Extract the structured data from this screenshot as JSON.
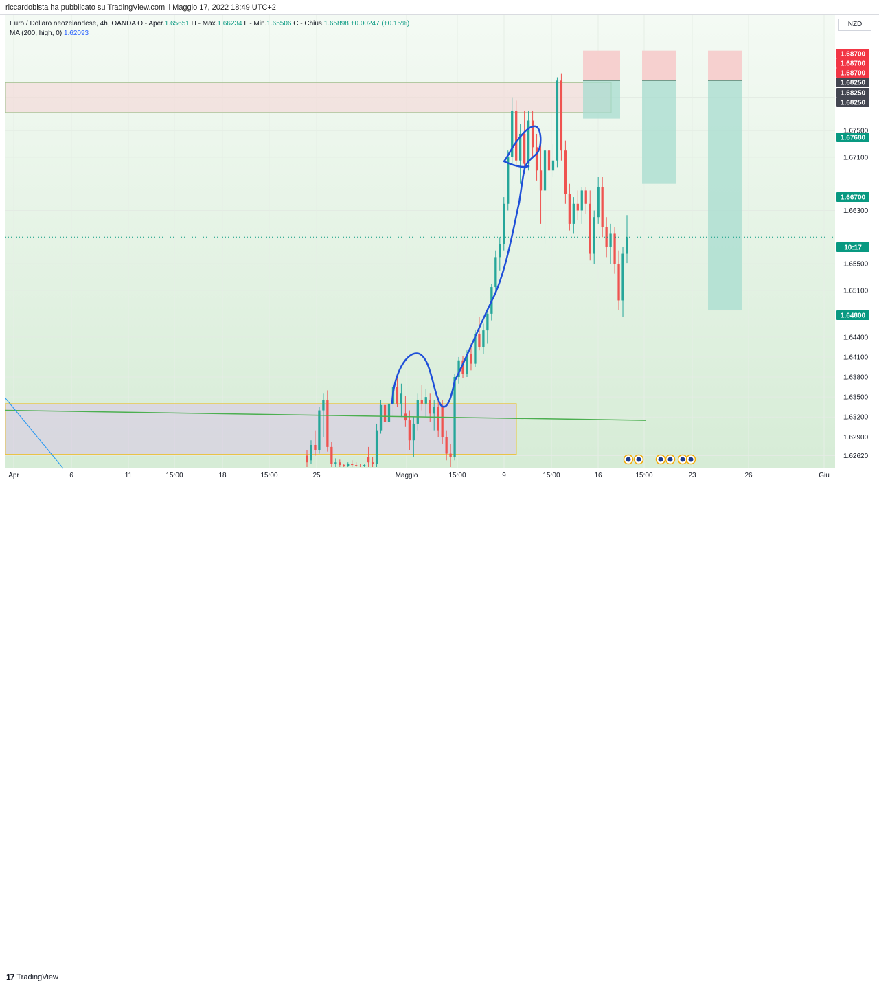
{
  "header": {
    "published": "riccardobista ha pubblicato su TradingView.com il Maggio 17, 2022 18:49 UTC+2"
  },
  "legend": {
    "symbol": "Euro / Dollaro neozelandese, 4h, OANDA",
    "ohlc": [
      {
        "label": "O - Aper.",
        "value": "1.65651"
      },
      {
        "label": "H - Max.",
        "value": "1.66234"
      },
      {
        "label": "L - Min.",
        "value": "1.65506"
      },
      {
        "label": "C - Chius.",
        "value": "1.65898"
      }
    ],
    "change": "+0.00247 (+0.15%)",
    "ma_label": "MA (200, high, 0)",
    "ma_value": "1.62093"
  },
  "currency": "NZD",
  "footer": {
    "brand": "TradingView",
    "mark": "17"
  },
  "colors": {
    "up": "#26a69a",
    "down": "#ef5350",
    "ma": "#4caf50",
    "drawing": "#1e4fd8",
    "accent": "#089981"
  },
  "chart_data": {
    "type": "candlestick",
    "symbol": "EURNZD",
    "timeframe": "4h",
    "ylim": [
      1.6245,
      1.6915
    ],
    "y_ticks": [
      "1.62620",
      "1.62900",
      "1.63200",
      "1.63500",
      "1.63800",
      "1.64100",
      "1.64400",
      "1.64700",
      "1.65100",
      "1.65500",
      "1.66300",
      "1.67100",
      "1.67500",
      "1.68000"
    ],
    "x_ticks": [
      "Apr",
      "6",
      "11",
      "15:00",
      "18",
      "15:00",
      "25",
      "Maggio",
      "15:00",
      "9",
      "15:00",
      "16",
      "15:00",
      "23",
      "26",
      "Giu"
    ],
    "price_labels": [
      {
        "text": "1.68700",
        "value": 1.687,
        "color": "#f23645"
      },
      {
        "text": "1.68700",
        "value": 1.687,
        "color": "#f23645"
      },
      {
        "text": "1.68700",
        "value": 1.687,
        "color": "#f23645"
      },
      {
        "text": "1.68250",
        "value": 1.6825,
        "color": "#434651"
      },
      {
        "text": "1.68250",
        "value": 1.6825,
        "color": "#434651"
      },
      {
        "text": "1.68250",
        "value": 1.6825,
        "color": "#434651"
      },
      {
        "text": "1.67680",
        "value": 1.6768,
        "color": "#089981"
      },
      {
        "text": "1.66700",
        "value": 1.667,
        "color": "#089981"
      },
      {
        "text": "10:17",
        "value": 1.659,
        "color": "#089981"
      },
      {
        "text": "1.64800",
        "value": 1.648,
        "color": "#089981"
      }
    ],
    "current_price": 1.659,
    "moving_average": {
      "name": "MA (200, high, 0)",
      "start": 1.633,
      "end": 1.6315
    },
    "supply_zone": {
      "top": 1.6822,
      "bottom": 1.6777
    },
    "demand_zone": {
      "top": 1.634,
      "bottom": 1.6264
    },
    "positions": [
      {
        "stop": 1.687,
        "entry": 1.6825,
        "target": 1.6768
      },
      {
        "stop": 1.687,
        "entry": 1.6825,
        "target": 1.667
      },
      {
        "stop": 1.687,
        "entry": 1.6825,
        "target": 1.648
      }
    ],
    "candles": [
      {
        "o": 1.6262,
        "h": 1.627,
        "l": 1.6245,
        "c": 1.6252
      },
      {
        "o": 1.6255,
        "h": 1.6285,
        "l": 1.625,
        "c": 1.6278
      },
      {
        "o": 1.6278,
        "h": 1.63,
        "l": 1.6262,
        "c": 1.627
      },
      {
        "o": 1.627,
        "h": 1.6335,
        "l": 1.6265,
        "c": 1.633
      },
      {
        "o": 1.633,
        "h": 1.6355,
        "l": 1.629,
        "c": 1.6345
      },
      {
        "o": 1.6345,
        "h": 1.636,
        "l": 1.6268,
        "c": 1.6275
      },
      {
        "o": 1.6275,
        "h": 1.6283,
        "l": 1.6245,
        "c": 1.625
      },
      {
        "o": 1.625,
        "h": 1.6258,
        "l": 1.6245,
        "c": 1.6252
      },
      {
        "o": 1.6252,
        "h": 1.6256,
        "l": 1.6245,
        "c": 1.6248
      },
      {
        "o": 1.6248,
        "h": 1.625,
        "l": 1.6245,
        "c": 1.6247
      },
      {
        "o": 1.6247,
        "h": 1.6252,
        "l": 1.6245,
        "c": 1.625
      },
      {
        "o": 1.625,
        "h": 1.6255,
        "l": 1.6245,
        "c": 1.6248
      },
      {
        "o": 1.6248,
        "h": 1.6252,
        "l": 1.6245,
        "c": 1.6247
      },
      {
        "o": 1.6247,
        "h": 1.625,
        "l": 1.6245,
        "c": 1.6246
      },
      {
        "o": 1.6246,
        "h": 1.6249,
        "l": 1.6245,
        "c": 1.6248
      },
      {
        "o": 1.626,
        "h": 1.6275,
        "l": 1.6245,
        "c": 1.6252
      },
      {
        "o": 1.6252,
        "h": 1.626,
        "l": 1.6245,
        "c": 1.625
      },
      {
        "o": 1.625,
        "h": 1.631,
        "l": 1.6245,
        "c": 1.63
      },
      {
        "o": 1.63,
        "h": 1.6345,
        "l": 1.6295,
        "c": 1.6338
      },
      {
        "o": 1.6338,
        "h": 1.635,
        "l": 1.63,
        "c": 1.6312
      },
      {
        "o": 1.6312,
        "h": 1.6345,
        "l": 1.6305,
        "c": 1.634
      },
      {
        "o": 1.634,
        "h": 1.6375,
        "l": 1.632,
        "c": 1.6365
      },
      {
        "o": 1.6365,
        "h": 1.6385,
        "l": 1.6335,
        "c": 1.634
      },
      {
        "o": 1.634,
        "h": 1.637,
        "l": 1.632,
        "c": 1.6355
      },
      {
        "o": 1.6325,
        "h": 1.6352,
        "l": 1.6305,
        "c": 1.6315
      },
      {
        "o": 1.6315,
        "h": 1.633,
        "l": 1.627,
        "c": 1.6285
      },
      {
        "o": 1.6285,
        "h": 1.632,
        "l": 1.626,
        "c": 1.631
      },
      {
        "o": 1.631,
        "h": 1.6355,
        "l": 1.63,
        "c": 1.6345
      },
      {
        "o": 1.6345,
        "h": 1.6368,
        "l": 1.633,
        "c": 1.634
      },
      {
        "o": 1.634,
        "h": 1.6362,
        "l": 1.632,
        "c": 1.635
      },
      {
        "o": 1.6345,
        "h": 1.6355,
        "l": 1.6312,
        "c": 1.6325
      },
      {
        "o": 1.6325,
        "h": 1.6345,
        "l": 1.63,
        "c": 1.6335
      },
      {
        "o": 1.6335,
        "h": 1.635,
        "l": 1.629,
        "c": 1.63
      },
      {
        "o": 1.6335,
        "h": 1.6345,
        "l": 1.628,
        "c": 1.629
      },
      {
        "o": 1.629,
        "h": 1.63,
        "l": 1.6255,
        "c": 1.6265
      },
      {
        "o": 1.6265,
        "h": 1.628,
        "l": 1.6245,
        "c": 1.626
      },
      {
        "o": 1.626,
        "h": 1.6385,
        "l": 1.6255,
        "c": 1.638
      },
      {
        "o": 1.638,
        "h": 1.641,
        "l": 1.637,
        "c": 1.6405
      },
      {
        "o": 1.6405,
        "h": 1.6412,
        "l": 1.6378,
        "c": 1.6385
      },
      {
        "o": 1.6385,
        "h": 1.642,
        "l": 1.638,
        "c": 1.6415
      },
      {
        "o": 1.6415,
        "h": 1.643,
        "l": 1.639,
        "c": 1.64
      },
      {
        "o": 1.64,
        "h": 1.645,
        "l": 1.6395,
        "c": 1.6445
      },
      {
        "o": 1.6445,
        "h": 1.647,
        "l": 1.642,
        "c": 1.6425
      },
      {
        "o": 1.6425,
        "h": 1.646,
        "l": 1.6415,
        "c": 1.645
      },
      {
        "o": 1.645,
        "h": 1.648,
        "l": 1.643,
        "c": 1.6475
      },
      {
        "o": 1.6475,
        "h": 1.652,
        "l": 1.6465,
        "c": 1.6515
      },
      {
        "o": 1.6515,
        "h": 1.657,
        "l": 1.6505,
        "c": 1.656
      },
      {
        "o": 1.656,
        "h": 1.659,
        "l": 1.654,
        "c": 1.658
      },
      {
        "o": 1.658,
        "h": 1.665,
        "l": 1.657,
        "c": 1.664
      },
      {
        "o": 1.664,
        "h": 1.672,
        "l": 1.663,
        "c": 1.671
      },
      {
        "o": 1.671,
        "h": 1.68,
        "l": 1.67,
        "c": 1.678
      },
      {
        "o": 1.678,
        "h": 1.6795,
        "l": 1.6695,
        "c": 1.6705
      },
      {
        "o": 1.6705,
        "h": 1.676,
        "l": 1.667,
        "c": 1.6745
      },
      {
        "o": 1.6745,
        "h": 1.678,
        "l": 1.6685,
        "c": 1.67
      },
      {
        "o": 1.67,
        "h": 1.678,
        "l": 1.669,
        "c": 1.6765
      },
      {
        "o": 1.6765,
        "h": 1.678,
        "l": 1.671,
        "c": 1.6725
      },
      {
        "o": 1.6725,
        "h": 1.6745,
        "l": 1.6675,
        "c": 1.669
      },
      {
        "o": 1.669,
        "h": 1.6735,
        "l": 1.661,
        "c": 1.666
      },
      {
        "o": 1.666,
        "h": 1.673,
        "l": 1.658,
        "c": 1.672
      },
      {
        "o": 1.672,
        "h": 1.674,
        "l": 1.668,
        "c": 1.669
      },
      {
        "o": 1.669,
        "h": 1.673,
        "l": 1.668,
        "c": 1.6705
      },
      {
        "o": 1.6705,
        "h": 1.683,
        "l": 1.6695,
        "c": 1.6825
      },
      {
        "o": 1.6825,
        "h": 1.6835,
        "l": 1.6705,
        "c": 1.672
      },
      {
        "o": 1.672,
        "h": 1.6735,
        "l": 1.664,
        "c": 1.6655
      },
      {
        "o": 1.6655,
        "h": 1.667,
        "l": 1.66,
        "c": 1.661
      },
      {
        "o": 1.661,
        "h": 1.665,
        "l": 1.6595,
        "c": 1.664
      },
      {
        "o": 1.664,
        "h": 1.666,
        "l": 1.6615,
        "c": 1.663
      },
      {
        "o": 1.663,
        "h": 1.6665,
        "l": 1.661,
        "c": 1.666
      },
      {
        "o": 1.666,
        "h": 1.6665,
        "l": 1.6625,
        "c": 1.664
      },
      {
        "o": 1.664,
        "h": 1.666,
        "l": 1.6555,
        "c": 1.6565
      },
      {
        "o": 1.6565,
        "h": 1.663,
        "l": 1.655,
        "c": 1.662
      },
      {
        "o": 1.662,
        "h": 1.668,
        "l": 1.661,
        "c": 1.6665
      },
      {
        "o": 1.6665,
        "h": 1.668,
        "l": 1.659,
        "c": 1.6605
      },
      {
        "o": 1.6605,
        "h": 1.662,
        "l": 1.656,
        "c": 1.6575
      },
      {
        "o": 1.6575,
        "h": 1.661,
        "l": 1.655,
        "c": 1.6595
      },
      {
        "o": 1.6595,
        "h": 1.6605,
        "l": 1.6535,
        "c": 1.655
      },
      {
        "o": 1.655,
        "h": 1.657,
        "l": 1.648,
        "c": 1.6495
      },
      {
        "o": 1.6495,
        "h": 1.6575,
        "l": 1.647,
        "c": 1.6565
      },
      {
        "o": 1.6565,
        "h": 1.6623,
        "l": 1.6551,
        "c": 1.659
      }
    ]
  }
}
